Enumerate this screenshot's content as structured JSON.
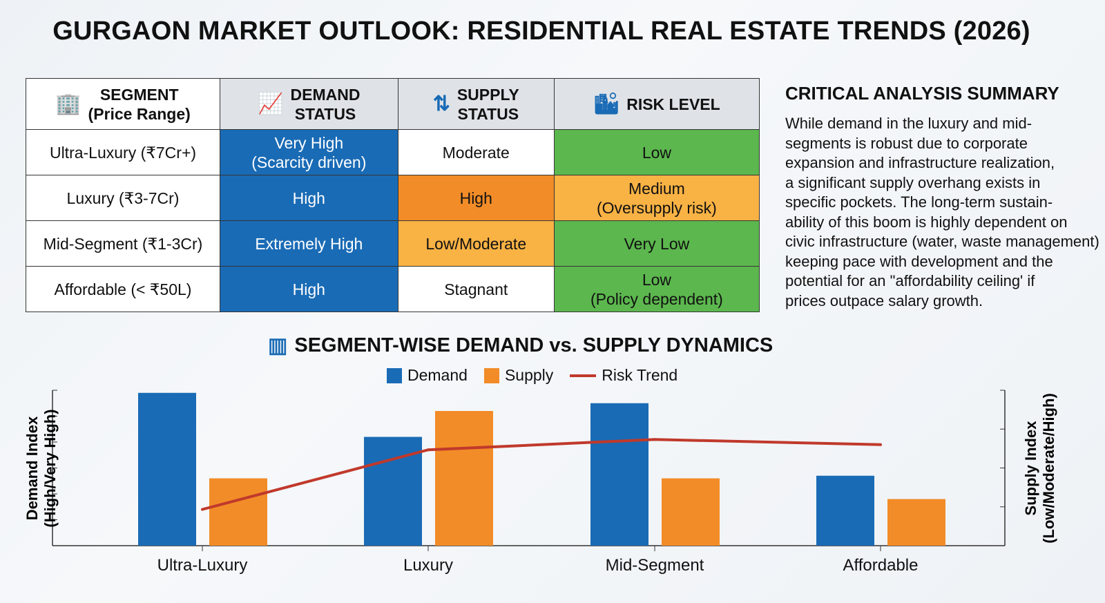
{
  "title": "GURGAON MARKET OUTLOOK: RESIDENTIAL REAL ESTATE TRENDS (2026)",
  "table": {
    "headers": [
      {
        "label": "SEGMENT\n(Price Range)",
        "icon": "building-icon"
      },
      {
        "label": "DEMAND\nSTATUS",
        "icon": "bar-chart-up-icon"
      },
      {
        "label": "SUPPLY\nSTATUS",
        "icon": "supply-arrows-icon"
      },
      {
        "label": "RISK LEVEL",
        "icon": "city-down-arrow-icon"
      }
    ],
    "rows": [
      {
        "segment": "Ultra-Luxury (₹7Cr+)",
        "demand": "Very High\n(Scarcity driven)",
        "supply": "Moderate",
        "risk": "Low"
      },
      {
        "segment": "Luxury (₹3-7Cr)",
        "demand": "High",
        "supply": "High",
        "risk": "Medium\n(Oversupply risk)"
      },
      {
        "segment": "Mid-Segment (₹1-3Cr)",
        "demand": "Extremely High",
        "supply": "Low/Moderate",
        "risk": "Very Low"
      },
      {
        "segment": "Affordable (< ₹50L)",
        "demand": "High",
        "supply": "Stagnant",
        "risk": "Low\n(Policy dependent)"
      }
    ]
  },
  "summary": {
    "title": "CRITICAL ANALYSIS SUMMARY",
    "body": "While demand in the luxury and mid-\nsegments is robust due to corporate\nexpansion and infrastructure realization,\na significant supply overhang exists in\nspecific pockets. The long-term sustain-\nability of this boom is highly dependent on\ncivic infrastructure (water, waste management)\nkeeping pace with development and the\npotential for an \"affordability ceiling' if\nprices outpace salary growth."
  },
  "colors": {
    "demand": "#1a6bb5",
    "supply": "#f28c28",
    "risk": "#c0392b",
    "supply_light": "#f9b244",
    "low_risk": "#5cb74e"
  },
  "chart_data": {
    "type": "bar",
    "title": "SEGMENT-WISE DEMAND vs. SUPPLY DYNAMICS",
    "categories": [
      "Ultra-Luxury",
      "Luxury",
      "Mid-Segment",
      "Affordable"
    ],
    "ylabel": "Demand Index\n(High/Very High)",
    "y2label": "Supply Index\n(Low/Moderate/High)",
    "ylim": [
      0,
      6
    ],
    "grid": false,
    "legend_position": "top-center",
    "series": [
      {
        "name": "Demand",
        "type": "bar",
        "values": [
          5.9,
          4.2,
          5.5,
          2.7
        ]
      },
      {
        "name": "Supply",
        "type": "bar",
        "values": [
          2.6,
          5.2,
          2.6,
          1.8
        ]
      },
      {
        "name": "Risk Trend",
        "type": "line",
        "values": [
          1.4,
          3.7,
          4.1,
          3.9
        ]
      }
    ]
  }
}
